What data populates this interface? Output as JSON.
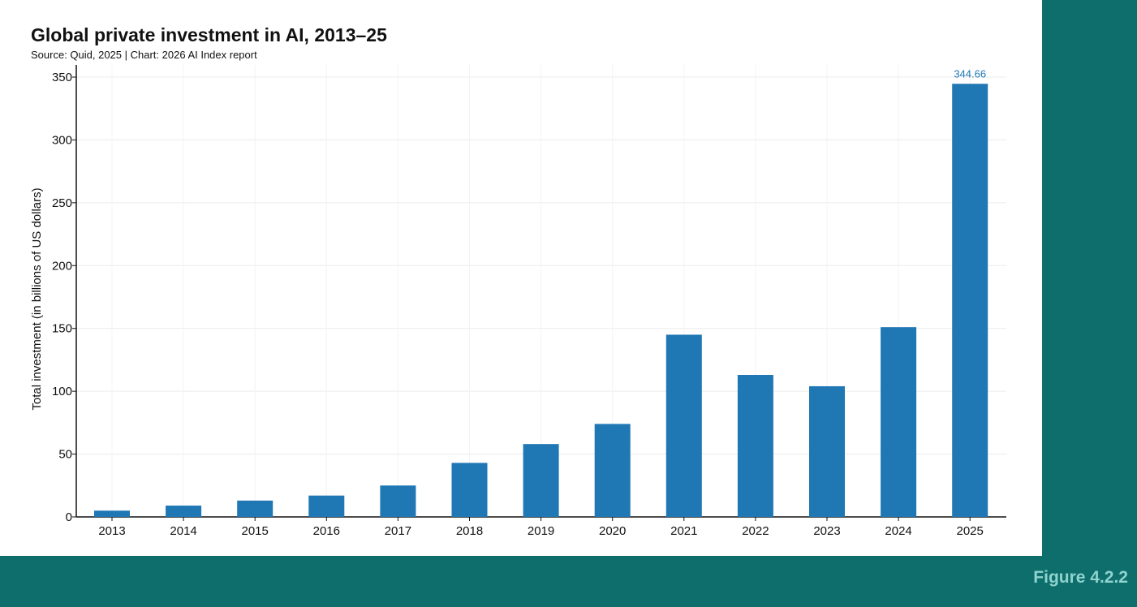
{
  "figure_label": "Figure 4.2.2",
  "chart_data": {
    "type": "bar",
    "title": "Global private investment in AI, 2013–25",
    "subtitle": "Source: Quid, 2025 | Chart: 2026 AI Index report",
    "xlabel": "",
    "ylabel": "Total investment (in billions of US dollars)",
    "ylim": [
      0,
      350
    ],
    "yticks": [
      0,
      50,
      100,
      150,
      200,
      250,
      300,
      350
    ],
    "grid": true,
    "bar_color": "#1f77b4",
    "categories": [
      "2013",
      "2014",
      "2015",
      "2016",
      "2017",
      "2018",
      "2019",
      "2020",
      "2021",
      "2022",
      "2023",
      "2024",
      "2025"
    ],
    "values": [
      5,
      9,
      13,
      17,
      25,
      43,
      58,
      74,
      145,
      113,
      104,
      151,
      344.66
    ],
    "data_labels": [
      {
        "category": "2025",
        "text": "344.66"
      }
    ]
  }
}
